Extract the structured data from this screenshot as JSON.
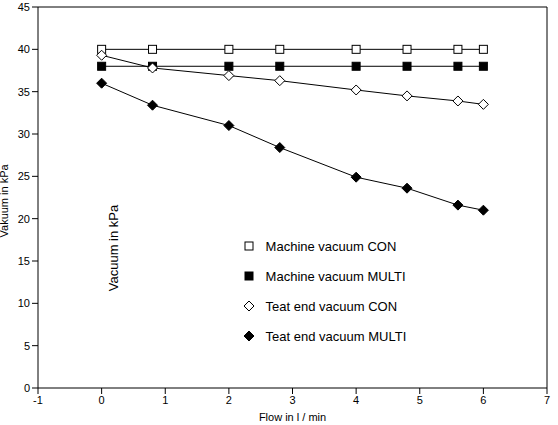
{
  "chart_data": {
    "type": "line",
    "x_label": "Flow in l / min",
    "y_label": "Vakuum in kPa",
    "annotations": [
      {
        "text": "Vacuum in kPa"
      }
    ],
    "xlim": [
      -1,
      7
    ],
    "xticks": [
      -1,
      0,
      1,
      2,
      3,
      4,
      5,
      6,
      7
    ],
    "ylim": [
      0,
      45
    ],
    "yticks": [
      0,
      5,
      10,
      15,
      20,
      25,
      30,
      35,
      40,
      45
    ],
    "grid": false,
    "legend": "lower center",
    "x": [
      0,
      0.8,
      2,
      2.8,
      4,
      4.8,
      5.6,
      6
    ],
    "series": [
      {
        "name": "Machine vacuum CON",
        "color": "#000000",
        "marker": "square",
        "values": [
          40,
          40,
          40,
          40,
          40,
          40,
          40,
          40
        ]
      },
      {
        "name": "Machine vacuum MULTI",
        "color": "#000000",
        "marker": "filled_square",
        "values": [
          38,
          38,
          38,
          38,
          38,
          38,
          38,
          38
        ]
      },
      {
        "name": "Teat end vacuum CON",
        "color": "#000000",
        "marker": "diamond",
        "values": [
          39.3,
          37.8,
          36.9,
          36.3,
          35.2,
          34.5,
          33.9,
          33.5
        ]
      },
      {
        "name": "Teat end vacuum MULTI",
        "color": "#000000",
        "marker": "filled_diamond",
        "values": [
          36,
          33.4,
          31,
          28.4,
          24.9,
          23.6,
          21.6,
          21
        ]
      }
    ]
  }
}
